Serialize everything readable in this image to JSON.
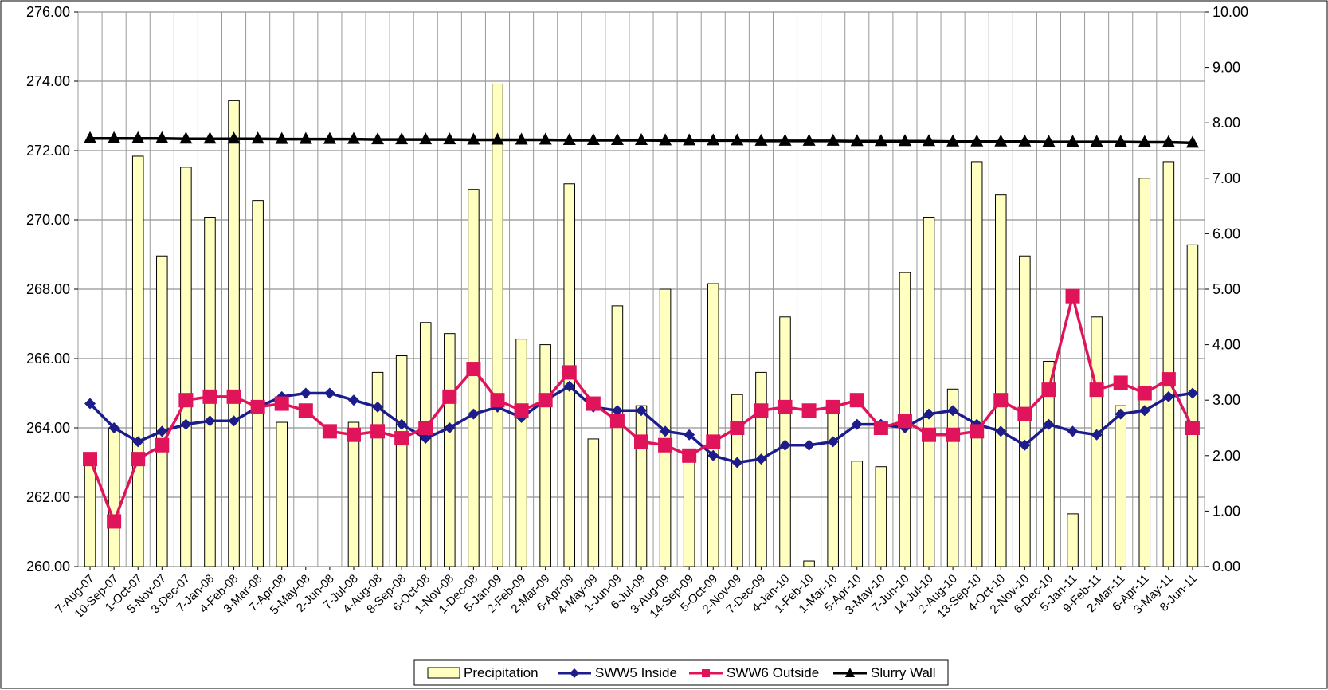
{
  "chart_data": {
    "type": "bar",
    "title": "",
    "x": [
      "7-Aug-07",
      "10-Sep-07",
      "1-Oct-07",
      "5-Nov-07",
      "3-Dec-07",
      "7-Jan-08",
      "4-Feb-08",
      "3-Mar-08",
      "7-Apr-08",
      "5-May-08",
      "2-Jun-08",
      "7-Jul-08",
      "4-Aug-08",
      "8-Sep-08",
      "6-Oct-08",
      "1-Nov-08",
      "1-Dec-08",
      "5-Jan-09",
      "2-Feb-09",
      "2-Mar-09",
      "6-Apr-09",
      "4-May-09",
      "1-Jun-09",
      "6-Jul-09",
      "3-Aug-09",
      "14-Sep-09",
      "5-Oct-09",
      "2-Nov-09",
      "7-Dec-09",
      "4-Jan-10",
      "1-Feb-10",
      "1-Mar-10",
      "5-Apr-10",
      "3-May-10",
      "7-Jun-10",
      "14-Jul-10",
      "2-Aug-10",
      "13-Sep-10",
      "4-Oct-10",
      "2-Nov-10",
      "6-Dec-10",
      "5-Jan-11",
      "9-Feb-11",
      "2-Mar-11",
      "6-Apr-11",
      "3-May-11",
      "8-Jun-11"
    ],
    "y_left": {
      "ylim": [
        260,
        276
      ],
      "ticks": [
        "260.00",
        "262.00",
        "264.00",
        "266.00",
        "268.00",
        "270.00",
        "272.00",
        "274.00",
        "276.00"
      ]
    },
    "y_right": {
      "ylim": [
        0,
        10
      ],
      "ticks": [
        "0.00",
        "1.00",
        "2.00",
        "3.00",
        "4.00",
        "5.00",
        "6.00",
        "7.00",
        "8.00",
        "9.00",
        "10.00"
      ]
    },
    "grid": true,
    "legend_position": "bottom",
    "series": [
      {
        "name": "Precipitation",
        "type": "bar",
        "axis": "right",
        "color": "#ffffc0",
        "values": [
          1.9,
          2.5,
          7.4,
          5.6,
          7.2,
          6.3,
          8.4,
          6.6,
          2.6,
          0,
          0,
          2.6,
          3.5,
          3.8,
          4.4,
          4.2,
          6.8,
          8.7,
          4.1,
          4.0,
          6.9,
          2.3,
          4.7,
          2.9,
          5.0,
          2.1,
          5.1,
          3.1,
          3.5,
          4.5,
          0.1,
          2.8,
          1.9,
          1.8,
          5.3,
          6.3,
          3.2,
          7.3,
          6.7,
          5.6,
          3.7,
          0.95,
          4.5,
          2.9,
          7.0,
          7.3,
          5.8
        ]
      },
      {
        "name": "SWW5 Inside",
        "type": "line",
        "axis": "left",
        "color": "#1c1c8c",
        "marker": "diamond",
        "values": [
          264.7,
          264.0,
          263.6,
          263.9,
          264.1,
          264.2,
          264.2,
          264.6,
          264.9,
          265.0,
          265.0,
          264.8,
          264.6,
          264.1,
          263.7,
          264.0,
          264.4,
          264.6,
          264.3,
          264.8,
          265.2,
          264.6,
          264.5,
          264.5,
          263.9,
          263.8,
          263.2,
          263.0,
          263.1,
          263.5,
          263.5,
          263.6,
          264.1,
          264.1,
          264.0,
          264.4,
          264.5,
          264.1,
          263.9,
          263.5,
          264.1,
          263.9,
          263.8,
          264.4,
          264.5,
          264.9,
          265.0
        ]
      },
      {
        "name": "SWW6 Outside",
        "type": "line",
        "axis": "left",
        "color": "#e0145a",
        "marker": "square",
        "values": [
          263.1,
          261.3,
          263.1,
          263.5,
          264.8,
          264.9,
          264.9,
          264.6,
          264.7,
          264.5,
          263.9,
          263.8,
          263.9,
          263.7,
          264.0,
          264.9,
          265.7,
          264.8,
          264.5,
          264.8,
          265.6,
          264.7,
          264.2,
          263.6,
          263.5,
          263.2,
          263.6,
          264.0,
          264.5,
          264.6,
          264.5,
          264.6,
          264.8,
          264.0,
          264.2,
          263.8,
          263.8,
          263.9,
          264.8,
          264.4,
          265.1,
          267.8,
          265.1,
          265.3,
          265.0,
          265.4,
          264.0
        ]
      },
      {
        "name": "Slurry Wall",
        "type": "line",
        "axis": "left",
        "color": "#000000",
        "marker": "triangle",
        "values": [
          272.35,
          272.35,
          272.35,
          272.35,
          272.34,
          272.34,
          272.34,
          272.34,
          272.33,
          272.33,
          272.33,
          272.33,
          272.32,
          272.32,
          272.32,
          272.32,
          272.31,
          272.31,
          272.31,
          272.31,
          272.3,
          272.3,
          272.3,
          272.3,
          272.29,
          272.29,
          272.29,
          272.29,
          272.28,
          272.28,
          272.28,
          272.28,
          272.27,
          272.27,
          272.27,
          272.27,
          272.26,
          272.26,
          272.26,
          272.26,
          272.25,
          272.25,
          272.25,
          272.25,
          272.24,
          272.24,
          272.22
        ]
      }
    ]
  }
}
